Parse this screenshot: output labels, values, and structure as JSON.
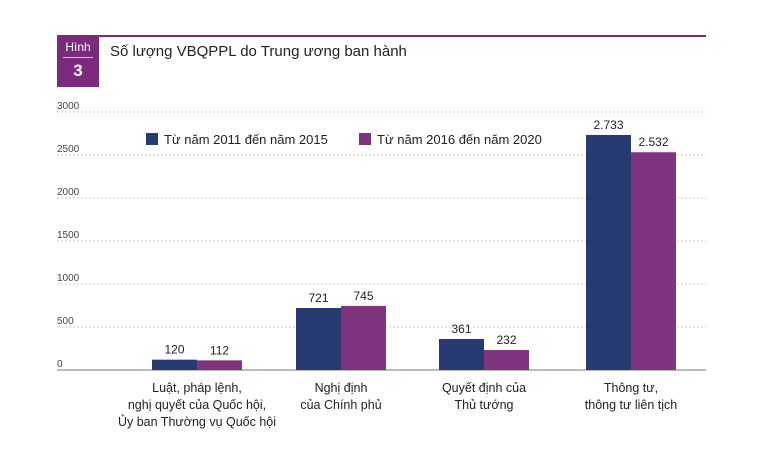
{
  "figure": {
    "label": "Hình",
    "number": "3"
  },
  "chart_data": {
    "type": "bar",
    "title": "Số lượng VBQPPL do Trung ương ban hành",
    "categories": [
      [
        "Luật, pháp lệnh,",
        "nghị quyết của Quốc hội,",
        "Ủy ban Thường vụ Quốc hội"
      ],
      [
        "Nghị định",
        "của Chính phủ"
      ],
      [
        "Quyết định của",
        "Thủ tướng"
      ],
      [
        "Thông tư,",
        "thông tư liên tịch"
      ]
    ],
    "series": [
      {
        "name": "Từ năm 2011 đến năm 2015",
        "color": "#283a72",
        "values": [
          120,
          721,
          361,
          2733
        ],
        "labels": [
          "120",
          "721",
          "361",
          "2.733"
        ]
      },
      {
        "name": "Từ năm 2016 đến năm 2020",
        "color": "#7e347f",
        "values": [
          112,
          745,
          232,
          2532
        ],
        "labels": [
          "112",
          "745",
          "232",
          "2.532"
        ]
      }
    ],
    "yticks": [
      "0",
      "500",
      "1000",
      "1500",
      "2000",
      "2500",
      "3000"
    ],
    "ylim": [
      0,
      3000
    ],
    "grid": true,
    "legend": "top-left"
  }
}
